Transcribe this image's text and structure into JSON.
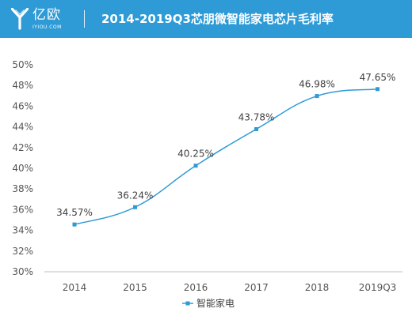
{
  "header": {
    "logo_cn": "亿欧",
    "logo_en": "IYIOU.COM",
    "title": "2014-2019Q3芯朋微智能家电芯片毛利率"
  },
  "colors": {
    "header_bg": "#2e9ad6",
    "series": "#2e9ad6",
    "axis": "#bfbfbf",
    "text": "#555555"
  },
  "chart_data": {
    "type": "line",
    "categories": [
      "2014",
      "2015",
      "2016",
      "2017",
      "2018",
      "2019Q3"
    ],
    "series": [
      {
        "name": "智能家电",
        "values": [
          34.57,
          36.24,
          40.25,
          43.78,
          46.98,
          47.65
        ],
        "labels": [
          "34.57%",
          "36.24%",
          "40.25%",
          "43.78%",
          "46.98%",
          "47.65%"
        ]
      }
    ],
    "yticks": [
      "30%",
      "32%",
      "34%",
      "36%",
      "38%",
      "40%",
      "42%",
      "44%",
      "46%",
      "48%",
      "50%"
    ],
    "ylim": [
      30,
      50
    ],
    "smooth": true,
    "grid": false,
    "legend": "bottom"
  }
}
